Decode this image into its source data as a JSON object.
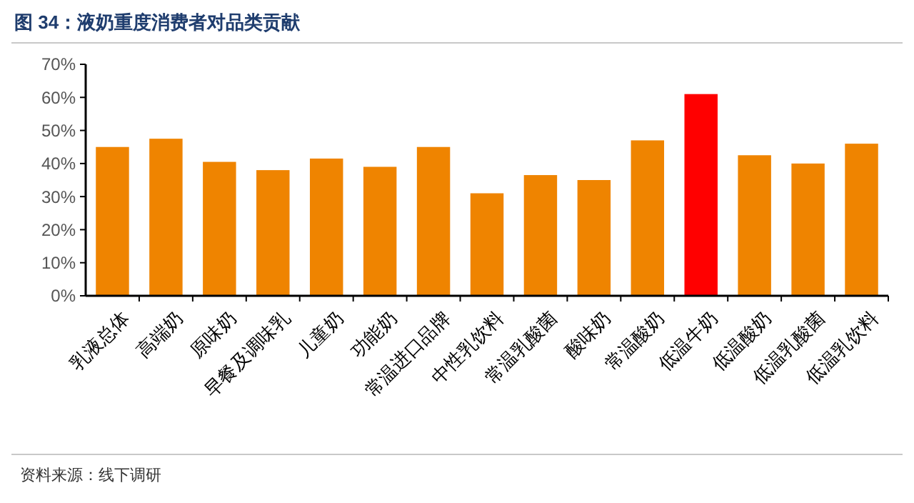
{
  "chart_data": {
    "type": "bar",
    "title": "图 34：液奶重度消费者对品类贡献",
    "categories": [
      "乳液总体",
      "高端奶",
      "原味奶",
      "早餐及调味乳",
      "儿童奶",
      "功能奶",
      "常温进口品牌",
      "中性乳饮料",
      "常温乳酸菌",
      "酸味奶",
      "常温酸奶",
      "低温牛奶",
      "低温酸奶",
      "低温乳酸菌",
      "低温乳饮料"
    ],
    "values": [
      45,
      47.5,
      40.5,
      38,
      41.5,
      39,
      45,
      31,
      36.5,
      35,
      47,
      61,
      42.5,
      40,
      46
    ],
    "colors": [
      "#ef8400",
      "#ef8400",
      "#ef8400",
      "#ef8400",
      "#ef8400",
      "#ef8400",
      "#ef8400",
      "#ef8400",
      "#ef8400",
      "#ef8400",
      "#ef8400",
      "#ff0000",
      "#ef8400",
      "#ef8400",
      "#ef8400"
    ],
    "ylim": [
      0,
      70
    ],
    "yticks": [
      {
        "value": 0,
        "label": "0%"
      },
      {
        "value": 10,
        "label": "10%"
      },
      {
        "value": 20,
        "label": "20%"
      },
      {
        "value": 30,
        "label": "30%"
      },
      {
        "value": 40,
        "label": "40%"
      },
      {
        "value": 50,
        "label": "50%"
      },
      {
        "value": 60,
        "label": "60%"
      },
      {
        "value": 70,
        "label": "70%"
      }
    ],
    "grid": false,
    "annotations": [
      "资料来源：线下调研"
    ]
  }
}
